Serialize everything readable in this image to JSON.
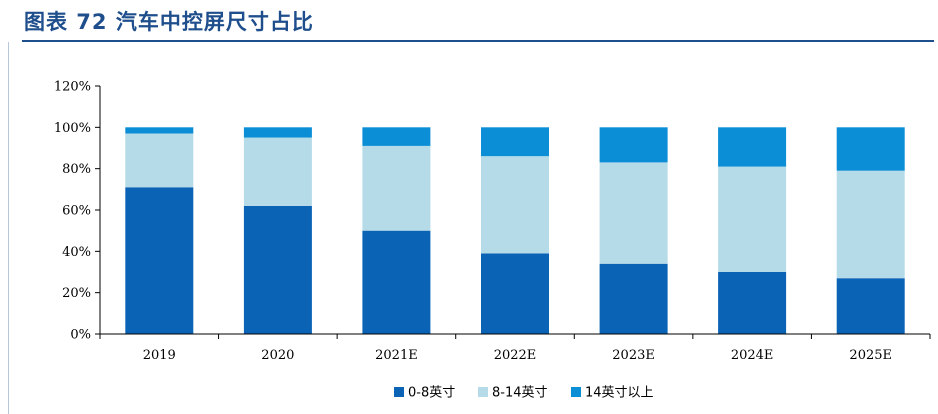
{
  "header": {
    "title": "图表 72   汽车中控屏尺寸占比"
  },
  "chart_data": {
    "type": "bar",
    "stacked": true,
    "categories": [
      "2019",
      "2020",
      "2021E",
      "2022E",
      "2023E",
      "2024E",
      "2025E"
    ],
    "series": [
      {
        "name": "0-8英寸",
        "color": "#0b63b6",
        "values": [
          71,
          62,
          50,
          39,
          34,
          30,
          27
        ]
      },
      {
        "name": "8-14英寸",
        "color": "#b5dae8",
        "values": [
          26,
          33,
          41,
          47,
          49,
          51,
          52
        ]
      },
      {
        "name": "14英寸以上",
        "color": "#0b8ed6",
        "values": [
          3,
          5,
          9,
          14,
          17,
          19,
          21
        ]
      }
    ],
    "y_ticks": [
      "0%",
      "20%",
      "40%",
      "60%",
      "80%",
      "100%",
      "120%"
    ],
    "ylim": [
      0,
      120
    ],
    "y_unit": "%",
    "grid": false,
    "legend_position": "bottom"
  }
}
